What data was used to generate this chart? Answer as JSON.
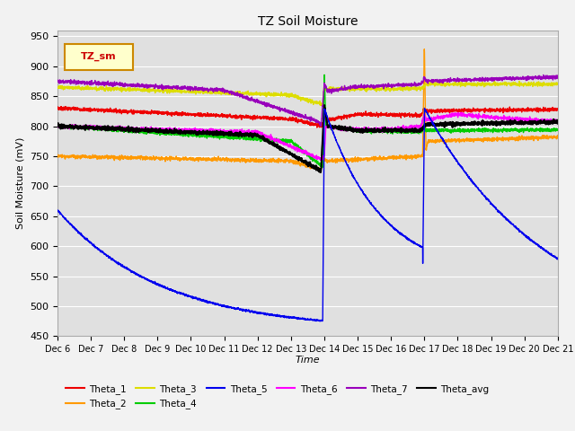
{
  "title": "TZ Soil Moisture",
  "xlabel": "Time",
  "ylabel": "Soil Moisture (mV)",
  "ylim": [
    450,
    960
  ],
  "xlim": [
    0,
    15
  ],
  "x_tick_labels": [
    "Dec 6",
    "Dec 7",
    "Dec 8",
    "Dec 9",
    "Dec 10",
    "Dec 11",
    "Dec 12",
    "Dec 13",
    "Dec 14",
    "Dec 15",
    "Dec 16",
    "Dec 17",
    "Dec 18",
    "Dec 19",
    "Dec 20",
    "Dec 21"
  ],
  "bg_color": "#e0e0e0",
  "grid_color": "#ffffff",
  "fig_color": "#f2f2f2",
  "series_colors": {
    "Theta_1": "#ee0000",
    "Theta_2": "#ff9900",
    "Theta_3": "#dddd00",
    "Theta_4": "#00cc00",
    "Theta_5": "#0000ee",
    "Theta_6": "#ff00ff",
    "Theta_7": "#9900bb",
    "Theta_avg": "#000000"
  },
  "legend_box_face": "#ffffcc",
  "legend_box_edge": "#cc8800",
  "legend_text_color": "#cc0000",
  "legend_label": "TZ_sm"
}
